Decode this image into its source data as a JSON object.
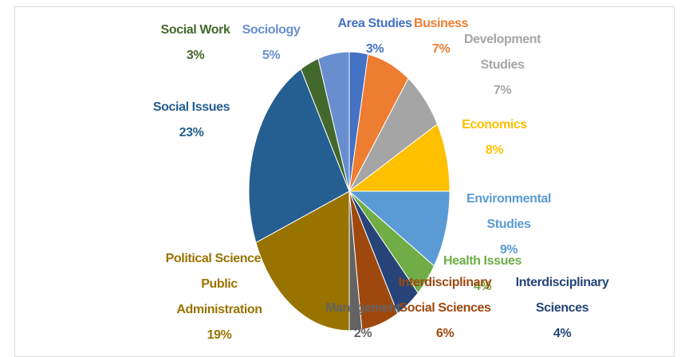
{
  "chart_data": {
    "type": "pie",
    "categories": [
      "Area Studies",
      "Business",
      "Development Studies",
      "Economics",
      "Environmental Studies",
      "Health Issues",
      "Interdisciplinary Sciences",
      "Interdisciplinary Social Sciences",
      "Management",
      "Political Science & Public Administration",
      "Social Issues",
      "Social Work",
      "Sociology"
    ],
    "values": [
      3,
      7,
      7,
      8,
      9,
      4,
      4,
      6,
      2,
      19,
      23,
      3,
      5
    ],
    "value_labels": [
      "3%",
      "7%",
      "7%",
      "8%",
      "9%",
      "4%",
      "4%",
      "6%",
      "2%",
      "19%",
      "23%",
      "3%",
      "5%"
    ],
    "colors": [
      "#4472c4",
      "#ed7d31",
      "#a5a5a5",
      "#ffc000",
      "#5b9bd5",
      "#70ad47",
      "#264478",
      "#9e480e",
      "#636363",
      "#997300",
      "#255e91",
      "#43682b",
      "#698ed0"
    ]
  }
}
